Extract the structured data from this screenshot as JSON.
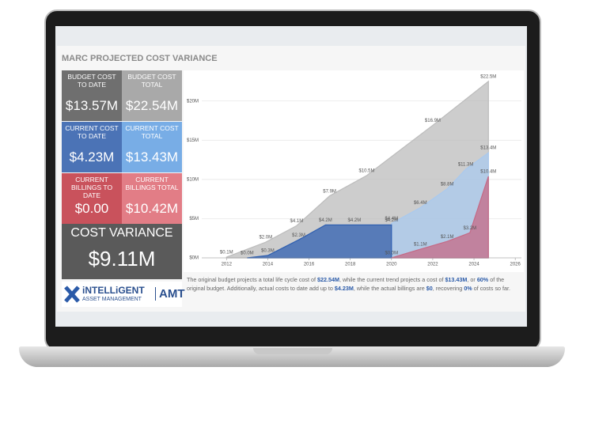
{
  "header": {
    "title": "MARC PROJECTED COST VARIANCE"
  },
  "tiles": [
    {
      "label": "BUDGET COST TO DATE",
      "value": "$13.57M",
      "color": "#6f6f6f"
    },
    {
      "label": "BUDGET COST TOTAL",
      "value": "$22.54M",
      "color": "#a9a9a9"
    },
    {
      "label": "CURRENT COST TO DATE",
      "value": "$4.23M",
      "color": "#4b73b6"
    },
    {
      "label": "CURRENT COST TOTAL",
      "value": "$13.43M",
      "color": "#78ade6"
    },
    {
      "label": "CURRENT BILLINGS TO DATE",
      "value": "$0.00",
      "color": "#c9525c"
    },
    {
      "label": "CURRENT BILLINGS TOTAL",
      "value": "$10.42M",
      "color": "#e27d86"
    }
  ],
  "variance": {
    "label": "COST VARIANCE",
    "value": "$9.11M"
  },
  "logo": {
    "name": "iNTELLiGENT",
    "subtitle": "ASSET MANAGEMENT",
    "short": "AMT"
  },
  "summary": [
    "The original budget projects a total life cycle cost of ",
    "$22.54M",
    ", while the current trend projects a cost of ",
    "$13.43M",
    ", or ",
    "60%",
    " of the original budget. Additionally, actual costs to date add up to ",
    "$4.23M",
    ", while the actual billings are ",
    "$0",
    ", recovering ",
    "0%",
    " of costs so far."
  ],
  "chart_data": {
    "type": "area",
    "xlim": [
      2010.8,
      2026.3
    ],
    "xticks": [
      2012,
      2014,
      2016,
      2018,
      2020,
      2022,
      2024,
      2026
    ],
    "ylim": [
      0,
      23.5
    ],
    "yticks": [
      {
        "value": 0,
        "label": "$0M"
      },
      {
        "value": 5,
        "label": "$5M"
      },
      {
        "value": 10,
        "label": "$10M"
      },
      {
        "value": 15,
        "label": "$15M"
      },
      {
        "value": 20,
        "label": "$20M"
      }
    ],
    "grid": true,
    "series": [
      {
        "color": "#bcbcbc",
        "x": [
          2012,
          2013.9,
          2015.4,
          2017,
          2018.8,
          2022,
          2024.7
        ],
        "values": [
          0.1,
          2.0,
          4.1,
          7.9,
          10.5,
          16.9,
          22.5
        ],
        "value_labels": [
          "$0.1M",
          "$2.0M",
          "$4.1M",
          "$7.9M",
          "$10.5M",
          "$16.9M",
          "$22.5M"
        ]
      },
      {
        "color": "#a9c9ee",
        "x": [
          2020,
          2021.4,
          2022.7,
          2023.6,
          2024.7
        ],
        "values": [
          4.4,
          6.4,
          8.8,
          11.3,
          13.4
        ],
        "value_labels": [
          "$4.4M",
          "$6.4M",
          "$8.8M",
          "$11.3M",
          "$13.4M"
        ]
      },
      {
        "color": "#2f5fb0",
        "x": [
          2013,
          2014,
          2015.5,
          2016.8,
          2018.2,
          2020
        ],
        "values": [
          0.0,
          0.3,
          2.3,
          4.2,
          4.2,
          4.2
        ],
        "value_labels": [
          "$0.0M",
          "$0.3M",
          "$2.3M",
          "$4.2M",
          "$4.2M",
          "$4.2M"
        ]
      },
      {
        "color": "#c56a86",
        "x": [
          2020,
          2021.4,
          2022.7,
          2023.8,
          2024.7
        ],
        "values": [
          0.0,
          1.1,
          2.1,
          3.2,
          10.4
        ],
        "value_labels": [
          "$0.0M",
          "$1.1M",
          "$2.1M",
          "$3.2M",
          "$10.4M"
        ]
      }
    ]
  }
}
